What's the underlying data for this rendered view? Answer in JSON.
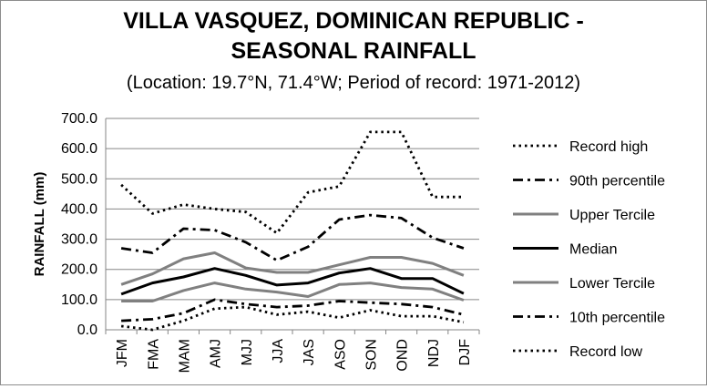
{
  "chart_data": {
    "type": "line",
    "title_line1": "VILLA VASQUEZ, DOMINICAN REPUBLIC -",
    "title_line2": "SEASONAL RAINFALL",
    "subtitle": "(Location: 19.7°N, 71.4°W; Period of record: 1971-2012)",
    "xlabel": "",
    "ylabel": "RAINFALL (mm)",
    "ylim": [
      0,
      700
    ],
    "yticks": [
      0,
      100,
      200,
      300,
      400,
      500,
      600,
      700
    ],
    "ytick_labels": [
      "0.0",
      "100.0",
      "200.0",
      "300.0",
      "400.0",
      "500.0",
      "600.0",
      "700.0"
    ],
    "grid": true,
    "legend_position": "right",
    "categories": [
      "JFM",
      "FMA",
      "MAM",
      "AMJ",
      "MJJ",
      "JJA",
      "JAS",
      "ASO",
      "SON",
      "OND",
      "NDJ",
      "DJF"
    ],
    "series": [
      {
        "name": "Record high",
        "style": "dotted",
        "color": "#000000",
        "values": [
          480,
          385,
          415,
          400,
          390,
          320,
          455,
          475,
          655,
          655,
          440,
          440
        ]
      },
      {
        "name": "90th percentile",
        "style": "dashdot",
        "color": "#000000",
        "values": [
          270,
          255,
          335,
          330,
          290,
          230,
          275,
          365,
          380,
          370,
          305,
          270
        ]
      },
      {
        "name": "Upper Tercile",
        "style": "solid",
        "color": "#808080",
        "values": [
          150,
          185,
          235,
          255,
          205,
          190,
          190,
          215,
          240,
          240,
          220,
          180
        ]
      },
      {
        "name": "Median",
        "style": "solid",
        "color": "#000000",
        "values": [
          118,
          155,
          175,
          203,
          180,
          148,
          155,
          188,
          203,
          170,
          170,
          120
        ]
      },
      {
        "name": "Lower Tercile",
        "style": "solid",
        "color": "#808080",
        "values": [
          95,
          95,
          130,
          155,
          135,
          125,
          110,
          150,
          155,
          140,
          135,
          98
        ]
      },
      {
        "name": "10th percentile",
        "style": "dashdot",
        "color": "#000000",
        "values": [
          30,
          35,
          55,
          100,
          85,
          75,
          80,
          95,
          90,
          85,
          75,
          50
        ]
      },
      {
        "name": "Record low",
        "style": "dotted",
        "color": "#000000",
        "values": [
          12,
          0,
          30,
          70,
          75,
          50,
          60,
          40,
          65,
          45,
          45,
          25
        ]
      }
    ]
  }
}
